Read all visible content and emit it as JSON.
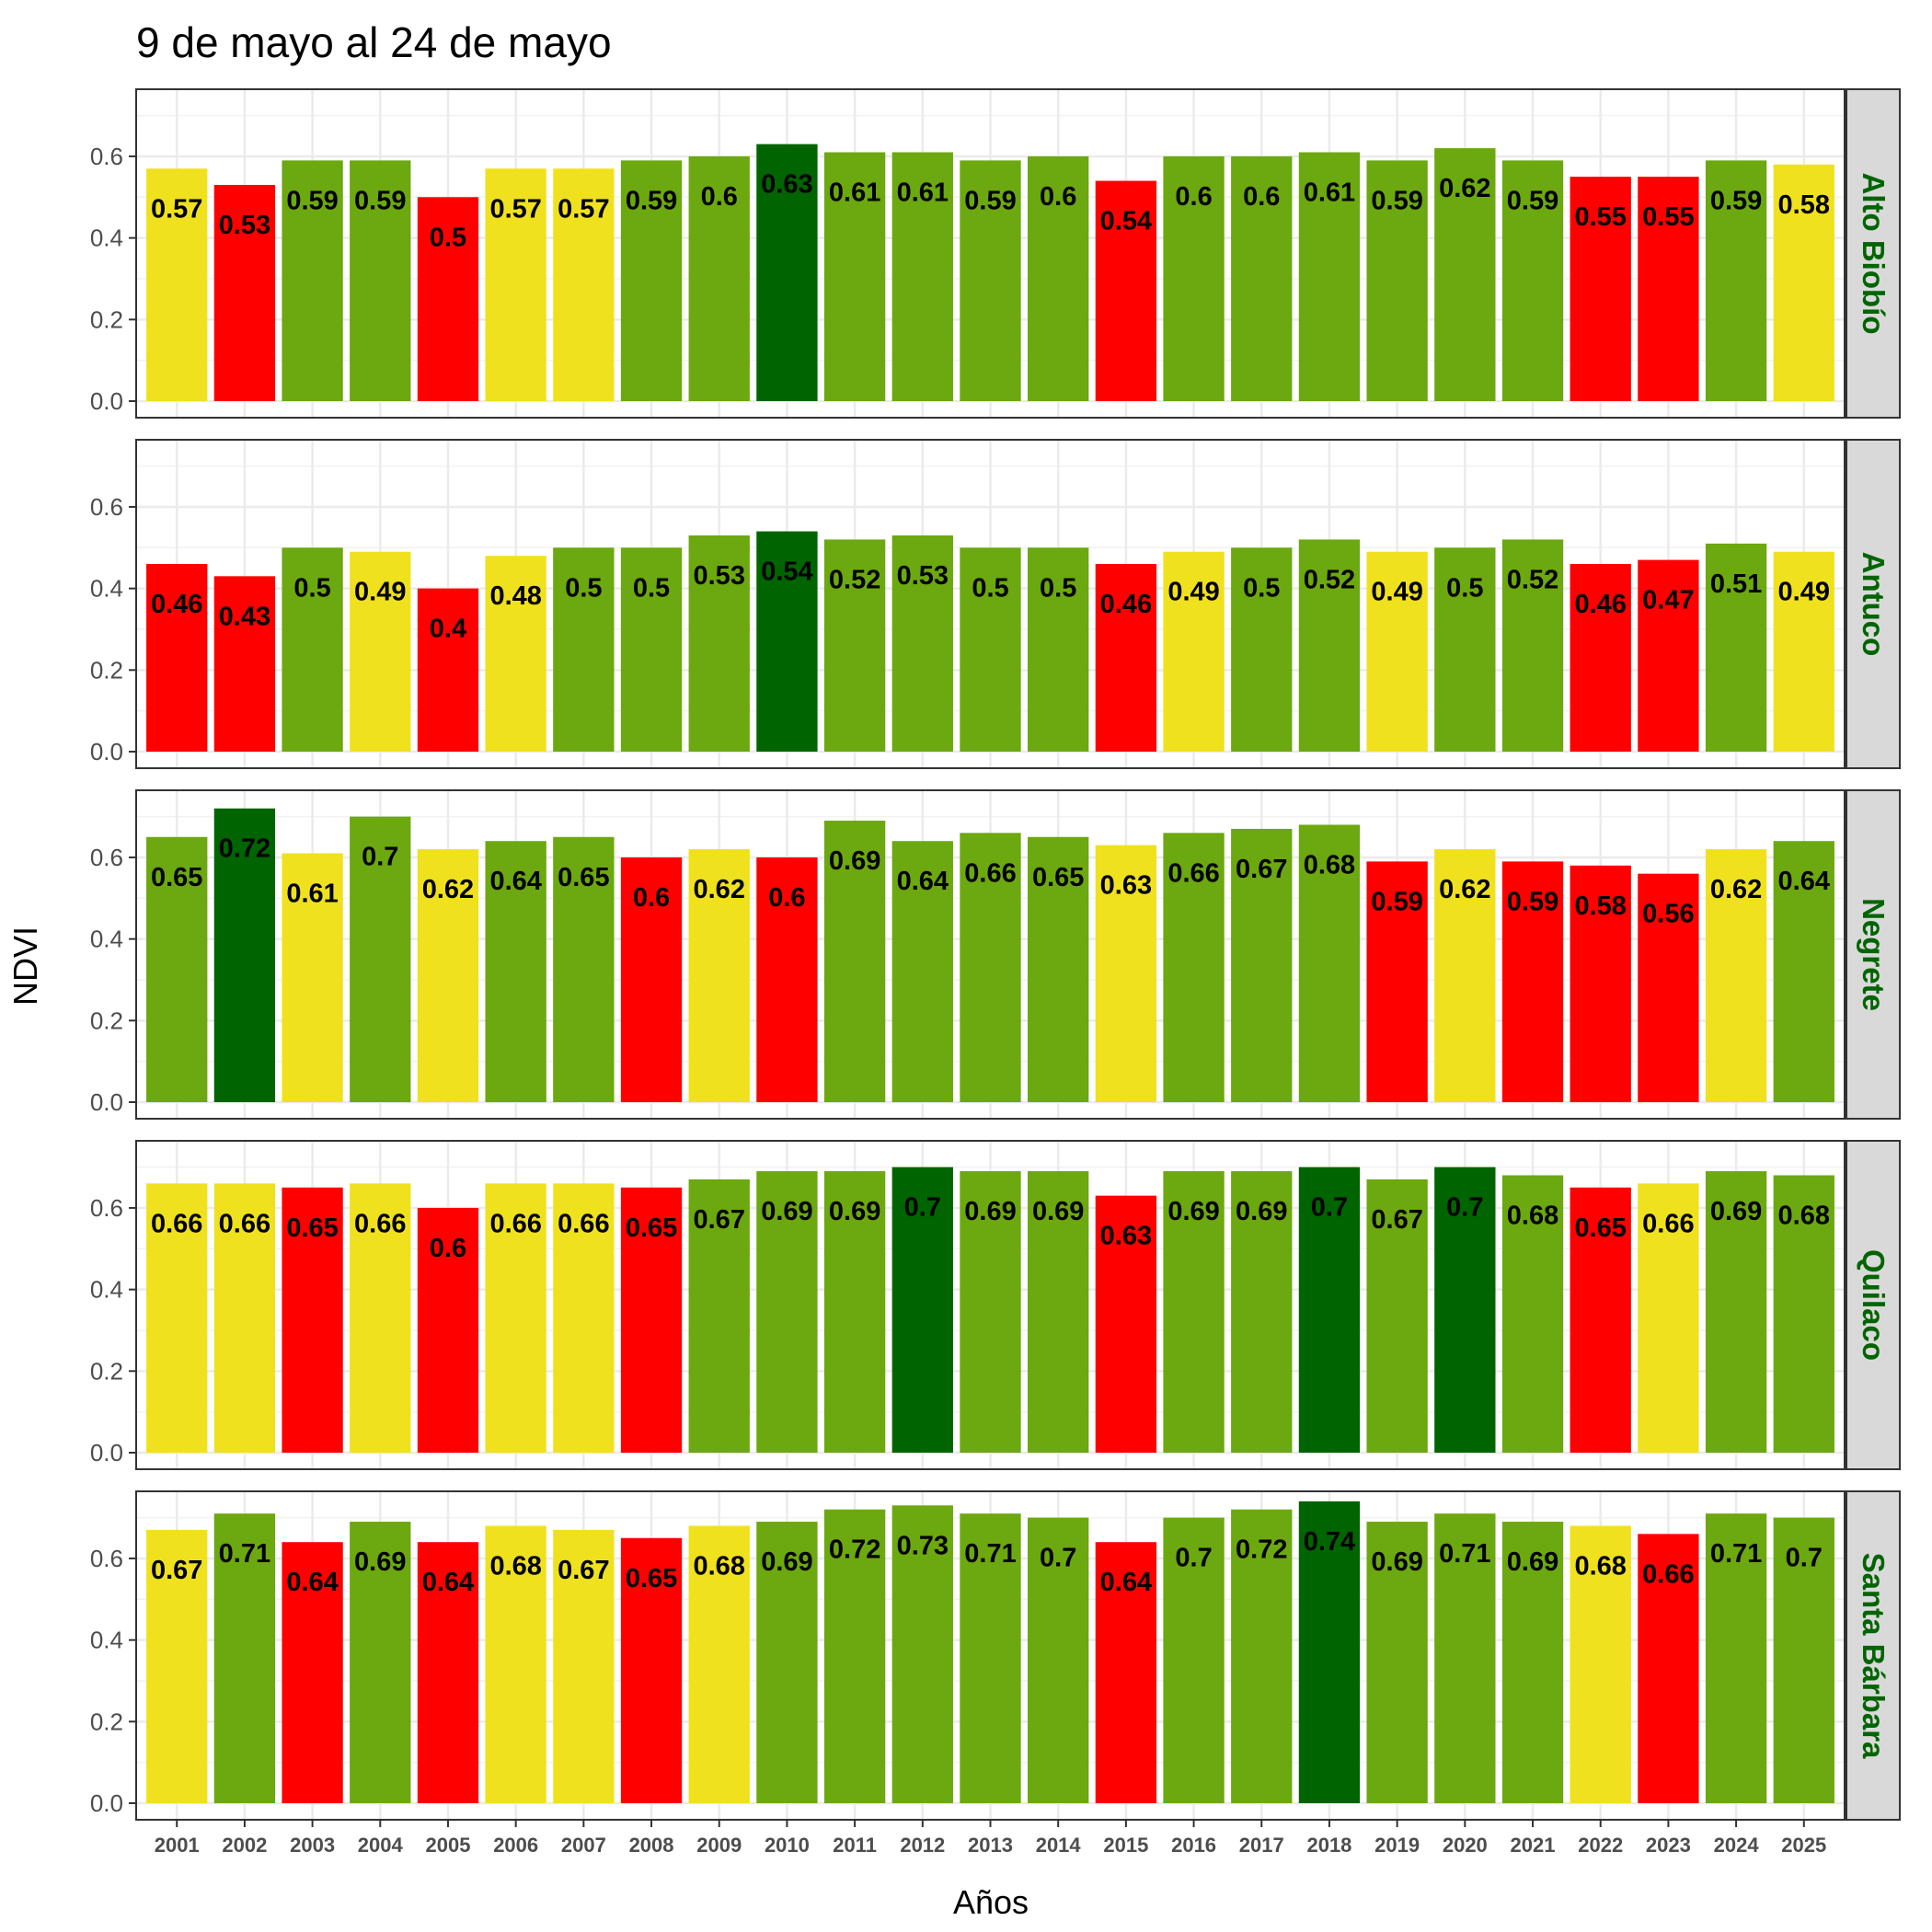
{
  "chart_data": {
    "type": "bar",
    "title": "9 de mayo al 24 de mayo",
    "xlabel": "Años",
    "ylabel": "NDVI",
    "ylim": [
      0,
      0.76
    ],
    "y_ticks": [
      "0.0",
      "0.2",
      "0.4",
      "0.6"
    ],
    "grid": true,
    "facet_layout": "vertical, strip labels on right",
    "categories": [
      "2001",
      "2002",
      "2003",
      "2004",
      "2005",
      "2006",
      "2007",
      "2008",
      "2009",
      "2010",
      "2011",
      "2012",
      "2013",
      "2014",
      "2015",
      "2016",
      "2017",
      "2018",
      "2019",
      "2020",
      "2021",
      "2022",
      "2023",
      "2024",
      "2025"
    ],
    "colors": {
      "red": "#ff0000",
      "yellow": "#f0e11e",
      "green": "#6ca80f",
      "dark_green": "#006400",
      "strip_bg": "#d9d9d9",
      "strip_text": "#006400"
    },
    "series": [
      {
        "name": "Alto Biobío",
        "values": [
          0.57,
          0.53,
          0.59,
          0.59,
          0.5,
          0.57,
          0.57,
          0.59,
          0.6,
          0.63,
          0.61,
          0.61,
          0.59,
          0.6,
          0.54,
          0.6,
          0.6,
          0.61,
          0.59,
          0.62,
          0.59,
          0.55,
          0.55,
          0.59,
          0.58
        ],
        "labels": [
          "0.57",
          "0.53",
          "0.59",
          "0.59",
          "0.5",
          "0.57",
          "0.57",
          "0.59",
          "0.6",
          "0.63",
          "0.61",
          "0.61",
          "0.59",
          "0.6",
          "0.54",
          "0.6",
          "0.6",
          "0.61",
          "0.59",
          "0.62",
          "0.59",
          "0.55",
          "0.55",
          "0.59",
          "0.58"
        ],
        "bar_colors": [
          "yellow",
          "red",
          "green",
          "green",
          "red",
          "yellow",
          "yellow",
          "green",
          "green",
          "dark_green",
          "green",
          "green",
          "green",
          "green",
          "red",
          "green",
          "green",
          "green",
          "green",
          "green",
          "green",
          "red",
          "red",
          "green",
          "yellow"
        ]
      },
      {
        "name": "Antuco",
        "values": [
          0.46,
          0.43,
          0.5,
          0.49,
          0.4,
          0.48,
          0.5,
          0.5,
          0.53,
          0.54,
          0.52,
          0.53,
          0.5,
          0.5,
          0.46,
          0.49,
          0.5,
          0.52,
          0.49,
          0.5,
          0.52,
          0.46,
          0.47,
          0.51,
          0.49
        ],
        "labels": [
          "0.46",
          "0.43",
          "0.5",
          "0.49",
          "0.4",
          "0.48",
          "0.5",
          "0.5",
          "0.53",
          "0.54",
          "0.52",
          "0.53",
          "0.5",
          "0.5",
          "0.46",
          "0.49",
          "0.5",
          "0.52",
          "0.49",
          "0.5",
          "0.52",
          "0.46",
          "0.47",
          "0.51",
          "0.49"
        ],
        "bar_colors": [
          "red",
          "red",
          "green",
          "yellow",
          "red",
          "yellow",
          "green",
          "green",
          "green",
          "dark_green",
          "green",
          "green",
          "green",
          "green",
          "red",
          "yellow",
          "green",
          "green",
          "yellow",
          "green",
          "green",
          "red",
          "red",
          "green",
          "yellow"
        ]
      },
      {
        "name": "Negrete",
        "values": [
          0.65,
          0.72,
          0.61,
          0.7,
          0.62,
          0.64,
          0.65,
          0.6,
          0.62,
          0.6,
          0.69,
          0.64,
          0.66,
          0.65,
          0.63,
          0.66,
          0.67,
          0.68,
          0.59,
          0.62,
          0.59,
          0.58,
          0.56,
          0.62,
          0.64
        ],
        "labels": [
          "0.65",
          "0.72",
          "0.61",
          "0.7",
          "0.62",
          "0.64",
          "0.65",
          "0.6",
          "0.62",
          "0.6",
          "0.69",
          "0.64",
          "0.66",
          "0.65",
          "0.63",
          "0.66",
          "0.67",
          "0.68",
          "0.59",
          "0.62",
          "0.59",
          "0.58",
          "0.56",
          "0.62",
          "0.64"
        ],
        "bar_colors": [
          "green",
          "dark_green",
          "yellow",
          "green",
          "yellow",
          "green",
          "green",
          "red",
          "yellow",
          "red",
          "green",
          "green",
          "green",
          "green",
          "yellow",
          "green",
          "green",
          "green",
          "red",
          "yellow",
          "red",
          "red",
          "red",
          "yellow",
          "green"
        ]
      },
      {
        "name": "Quilaco",
        "values": [
          0.66,
          0.66,
          0.65,
          0.66,
          0.6,
          0.66,
          0.66,
          0.65,
          0.67,
          0.69,
          0.69,
          0.7,
          0.69,
          0.69,
          0.63,
          0.69,
          0.69,
          0.7,
          0.67,
          0.7,
          0.68,
          0.65,
          0.66,
          0.69,
          0.68
        ],
        "labels": [
          "0.66",
          "0.66",
          "0.65",
          "0.66",
          "0.6",
          "0.66",
          "0.66",
          "0.65",
          "0.67",
          "0.69",
          "0.69",
          "0.7",
          "0.69",
          "0.69",
          "0.63",
          "0.69",
          "0.69",
          "0.7",
          "0.67",
          "0.7",
          "0.68",
          "0.65",
          "0.66",
          "0.69",
          "0.68"
        ],
        "bar_colors": [
          "yellow",
          "yellow",
          "red",
          "yellow",
          "red",
          "yellow",
          "yellow",
          "red",
          "green",
          "green",
          "green",
          "dark_green",
          "green",
          "green",
          "red",
          "green",
          "green",
          "dark_green",
          "green",
          "dark_green",
          "green",
          "red",
          "yellow",
          "green",
          "green"
        ]
      },
      {
        "name": "Santa Bárbara",
        "values": [
          0.67,
          0.71,
          0.64,
          0.69,
          0.64,
          0.68,
          0.67,
          0.65,
          0.68,
          0.69,
          0.72,
          0.73,
          0.71,
          0.7,
          0.64,
          0.7,
          0.72,
          0.74,
          0.69,
          0.71,
          0.69,
          0.68,
          0.66,
          0.71,
          0.7
        ],
        "labels": [
          "0.67",
          "0.71",
          "0.64",
          "0.69",
          "0.64",
          "0.68",
          "0.67",
          "0.65",
          "0.68",
          "0.69",
          "0.72",
          "0.73",
          "0.71",
          "0.7",
          "0.64",
          "0.7",
          "0.72",
          "0.74",
          "0.69",
          "0.71",
          "0.69",
          "0.68",
          "0.66",
          "0.71",
          "0.7"
        ],
        "bar_colors": [
          "yellow",
          "green",
          "red",
          "green",
          "red",
          "yellow",
          "yellow",
          "red",
          "yellow",
          "green",
          "green",
          "green",
          "green",
          "green",
          "red",
          "green",
          "green",
          "dark_green",
          "green",
          "green",
          "green",
          "yellow",
          "red",
          "green",
          "green"
        ]
      }
    ]
  }
}
